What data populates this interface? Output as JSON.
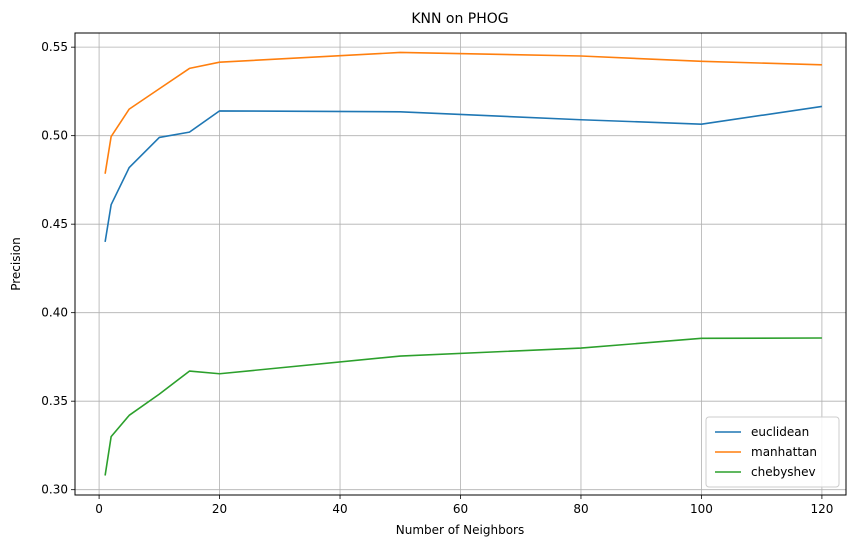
{
  "chart_data": {
    "type": "line",
    "title": "KNN on PHOG",
    "xlabel": "Number of Neighbors",
    "ylabel": "Precision",
    "xlim": [
      -4,
      124
    ],
    "ylim": [
      0.297,
      0.558
    ],
    "xticks": [
      0,
      20,
      40,
      60,
      80,
      100,
      120
    ],
    "yticks": [
      0.3,
      0.35,
      0.4,
      0.45,
      0.5,
      0.55
    ],
    "ytick_labels": [
      "0.30",
      "0.35",
      "0.40",
      "0.45",
      "0.50",
      "0.55"
    ],
    "grid": true,
    "legend_position": "lower-right",
    "x": [
      1,
      2,
      5,
      10,
      15,
      20,
      50,
      80,
      100,
      120
    ],
    "series": [
      {
        "name": "euclidean",
        "color": "#1f77b4",
        "values": [
          0.44,
          0.461,
          0.482,
          0.499,
          0.502,
          0.514,
          0.5135,
          0.509,
          0.5065,
          0.5165
        ]
      },
      {
        "name": "manhattan",
        "color": "#ff7f0e",
        "values": [
          0.4785,
          0.4995,
          0.515,
          0.5265,
          0.538,
          0.5415,
          0.547,
          0.545,
          0.542,
          0.54
        ]
      },
      {
        "name": "chebyshev",
        "color": "#2ca02c",
        "values": [
          0.308,
          0.33,
          0.342,
          0.354,
          0.367,
          0.3655,
          0.3755,
          0.38,
          0.3855,
          0.3857
        ]
      }
    ]
  }
}
